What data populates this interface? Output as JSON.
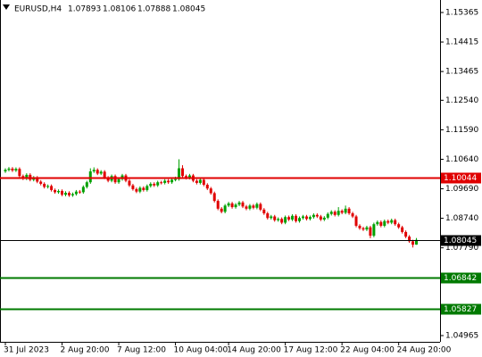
{
  "chart_data": {
    "type": "candlestick",
    "title": "EURUSD,H4",
    "up_color": "#00a000",
    "down_color": "#e00000",
    "categories": [
      "31 Jul 2023",
      null,
      null,
      null,
      null,
      null,
      null,
      null,
      null,
      null,
      null,
      null,
      null,
      null,
      null,
      null,
      "2 Aug 20:00",
      null,
      null,
      null,
      null,
      null,
      null,
      null,
      null,
      null,
      null,
      null,
      null,
      null,
      null,
      null,
      "7 Aug 12:00",
      null,
      null,
      null,
      null,
      null,
      null,
      null,
      null,
      null,
      null,
      null,
      null,
      null,
      null,
      null,
      "10 Aug 04:00",
      null,
      null,
      null,
      null,
      null,
      null,
      null,
      null,
      null,
      null,
      null,
      null,
      null,
      null,
      "14 Aug 20:00",
      null,
      null,
      null,
      null,
      null,
      null,
      null,
      null,
      null,
      null,
      null,
      null,
      null,
      null,
      null,
      "17 Aug 12:00",
      null,
      null,
      null,
      null,
      null,
      null,
      null,
      null,
      null,
      null,
      null,
      null,
      null,
      null,
      null,
      "22 Aug 04:00",
      null,
      null,
      null,
      null,
      null,
      null,
      null,
      null,
      null,
      null,
      null,
      null,
      null,
      null,
      null,
      "24 Aug 20:00",
      null,
      null,
      null,
      null,
      null
    ],
    "open": [
      1.1025,
      1.103,
      1.1034,
      1.1028,
      1.1033,
      1.101,
      1.1002,
      1.1014,
      1.0998,
      1.1005,
      1.0992,
      1.0985,
      1.0975,
      1.0978,
      1.0965,
      1.0958,
      1.0962,
      1.095,
      1.0956,
      1.0948,
      1.0952,
      1.096,
      1.0958,
      1.0975,
      1.099,
      1.1025,
      1.103,
      1.1018,
      1.1024,
      1.1005,
      1.0995,
      1.101,
      1.099,
      1.1,
      1.1012,
      1.0995,
      1.098,
      1.0968,
      1.096,
      1.0972,
      1.0965,
      1.0978,
      1.0985,
      1.098,
      1.099,
      1.0988,
      1.0995,
      1.099,
      1.0998,
      1.1,
      1.1035,
      1.101,
      1.1004,
      1.1012,
      1.0995,
      1.0988,
      1.0998,
      1.0982,
      1.097,
      1.0955,
      1.093,
      1.0905,
      1.0895,
      1.0915,
      1.0922,
      1.091,
      1.0918,
      1.0925,
      1.0912,
      1.0905,
      1.0915,
      1.0908,
      1.092,
      1.0902,
      1.089,
      1.0875,
      1.088,
      1.0868,
      1.0872,
      1.086,
      1.0878,
      1.087,
      1.0882,
      1.0865,
      1.0875,
      1.088,
      1.0872,
      1.0878,
      1.0885,
      1.088,
      1.087,
      1.0876,
      1.0888,
      1.0895,
      1.0885,
      1.0898,
      1.0892,
      1.0905,
      1.089,
      1.088,
      1.085,
      1.0842,
      1.0838,
      1.0845,
      1.0818,
      1.0855,
      1.0862,
      1.085,
      1.0865,
      1.086,
      1.0868,
      1.0855,
      1.0845,
      1.083,
      1.0815,
      1.08,
      1.07893
    ],
    "high": [
      1.1035,
      1.1039,
      1.1039,
      1.1038,
      1.1038,
      1.1015,
      1.1019,
      1.1019,
      1.101,
      1.101,
      1.0997,
      1.099,
      1.0983,
      1.0983,
      1.097,
      1.0967,
      1.0967,
      1.0961,
      1.0961,
      1.0957,
      1.0965,
      1.0965,
      1.098,
      1.0995,
      1.1035,
      1.1038,
      1.1035,
      1.1029,
      1.1029,
      1.101,
      1.1015,
      1.1015,
      1.1005,
      1.1017,
      1.1017,
      1.1,
      1.0985,
      1.0973,
      1.0977,
      1.0977,
      1.0983,
      1.099,
      1.099,
      1.0995,
      1.0995,
      1.1,
      1.1,
      1.1003,
      1.1008,
      1.1064,
      1.1045,
      1.1015,
      1.1017,
      1.1017,
      1.1,
      1.1003,
      1.1003,
      1.0987,
      1.0975,
      1.096,
      1.0935,
      1.091,
      1.092,
      1.0927,
      1.0927,
      1.0923,
      1.093,
      1.093,
      1.0917,
      1.092,
      1.092,
      1.0925,
      1.0925,
      1.0907,
      1.0895,
      1.0885,
      1.0885,
      1.0877,
      1.0877,
      1.0883,
      1.0883,
      1.0887,
      1.0887,
      1.088,
      1.0885,
      1.0885,
      1.0883,
      1.089,
      1.089,
      1.0885,
      1.0881,
      1.0893,
      1.09,
      1.09,
      1.091,
      1.0903,
      1.0915,
      1.091,
      1.0895,
      1.0885,
      1.0855,
      1.0847,
      1.085,
      1.085,
      1.086,
      1.0867,
      1.0867,
      1.087,
      1.087,
      1.0873,
      1.0873,
      1.086,
      1.085,
      1.0835,
      1.082,
      1.0805,
      1.08106
    ],
    "low": [
      1.102,
      1.1025,
      1.1023,
      1.1023,
      1.1005,
      1.0997,
      1.0997,
      1.0993,
      1.0993,
      1.0987,
      1.098,
      1.097,
      1.097,
      1.096,
      1.0953,
      1.0953,
      1.0945,
      1.0945,
      1.0943,
      1.0943,
      1.0947,
      1.0953,
      1.0953,
      1.097,
      1.0985,
      1.102,
      1.1013,
      1.1013,
      1.1,
      1.099,
      1.099,
      1.0985,
      1.0985,
      1.0995,
      1.099,
      1.0975,
      1.0963,
      1.0955,
      1.0955,
      1.096,
      1.096,
      1.0973,
      1.0975,
      1.0975,
      1.0983,
      1.0983,
      1.0985,
      1.0985,
      1.0993,
      1.0995,
      1.1005,
      1.0999,
      1.0999,
      1.099,
      1.0983,
      1.0983,
      1.0977,
      1.0965,
      1.095,
      1.0925,
      1.09,
      1.089,
      1.089,
      1.091,
      1.0905,
      1.0905,
      1.0913,
      1.0907,
      1.09,
      1.09,
      1.0903,
      1.0903,
      1.0897,
      1.0885,
      1.087,
      1.087,
      1.0863,
      1.0863,
      1.0855,
      1.0855,
      1.0865,
      1.0865,
      1.086,
      1.086,
      1.087,
      1.0867,
      1.0867,
      1.0873,
      1.0875,
      1.0865,
      1.0865,
      1.0871,
      1.0883,
      1.088,
      1.088,
      1.0887,
      1.0887,
      1.0885,
      1.0875,
      1.0845,
      1.0837,
      1.0833,
      1.0833,
      1.081,
      1.0813,
      1.085,
      1.0845,
      1.0845,
      1.0855,
      1.0855,
      1.085,
      1.084,
      1.0825,
      1.081,
      1.0795,
      1.078,
      1.07888
    ],
    "close": [
      1.103,
      1.1034,
      1.1028,
      1.1033,
      1.101,
      1.1002,
      1.1014,
      1.0998,
      1.1005,
      1.0992,
      1.0985,
      1.0975,
      1.0978,
      1.0965,
      1.0958,
      1.0962,
      1.095,
      1.0956,
      1.0948,
      1.0952,
      1.096,
      1.0958,
      1.0975,
      1.099,
      1.1025,
      1.103,
      1.1018,
      1.1024,
      1.1005,
      1.0995,
      1.101,
      1.099,
      1.1,
      1.1012,
      1.0995,
      1.098,
      1.0968,
      1.096,
      1.0972,
      1.0965,
      1.0978,
      1.0985,
      1.098,
      1.099,
      1.0988,
      1.0995,
      1.099,
      1.0998,
      1.1,
      1.1035,
      1.101,
      1.1004,
      1.1012,
      1.0995,
      1.0988,
      1.0998,
      1.0982,
      1.097,
      1.0955,
      1.093,
      1.0905,
      1.0895,
      1.0915,
      1.0922,
      1.091,
      1.0918,
      1.0925,
      1.0912,
      1.0905,
      1.0915,
      1.0908,
      1.092,
      1.0902,
      1.089,
      1.0875,
      1.088,
      1.0868,
      1.0872,
      1.086,
      1.0878,
      1.087,
      1.0882,
      1.0865,
      1.0875,
      1.088,
      1.0872,
      1.0878,
      1.0885,
      1.088,
      1.087,
      1.0876,
      1.0888,
      1.0895,
      1.0885,
      1.0898,
      1.0892,
      1.0905,
      1.089,
      1.088,
      1.085,
      1.0842,
      1.0838,
      1.0845,
      1.0818,
      1.0855,
      1.0862,
      1.085,
      1.0865,
      1.086,
      1.0868,
      1.0855,
      1.0845,
      1.083,
      1.0815,
      1.08,
      1.0789,
      1.08045
    ],
    "ylim": [
      1.04764,
      1.15767
    ],
    "yticks": [
      1.15365,
      1.14415,
      1.13465,
      {
        "value": 1.1254,
        "label": "1.12540"
      },
      {
        "value": 1.1159,
        "label": "1.11590"
      },
      {
        "value": 1.1064,
        "label": "1.10640"
      },
      {
        "value": 1.0969,
        "label": "1.09690"
      },
      {
        "value": 1.0874,
        "label": "1.08740"
      },
      {
        "value": 1.0779,
        "label": "1.07790"
      },
      1.04965
    ],
    "levels": [
      {
        "value": 1.10044,
        "color": "#e00000"
      },
      {
        "value": 1.08045,
        "color": "#000000"
      },
      {
        "value": 1.06842,
        "color": "#007a00"
      },
      {
        "value": 1.05827,
        "color": "#007a00"
      }
    ]
  }
}
